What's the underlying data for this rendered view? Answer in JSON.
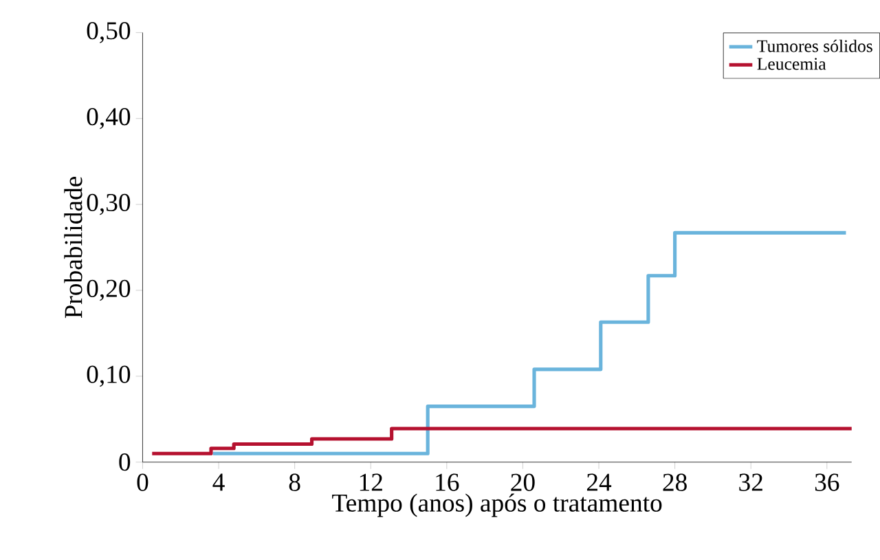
{
  "chart_data": {
    "type": "step",
    "xlabel": "Tempo (anos) após o  tratamento",
    "ylabel": "Probabilidade",
    "series": [
      {
        "name": "Tumores sólidos",
        "color": "#6ab4dc",
        "x": [
          3.7,
          15.0,
          20.6,
          24.1,
          26.6,
          28.0,
          37.0
        ],
        "values": [
          0.01,
          0.065,
          0.108,
          0.163,
          0.217,
          0.267,
          0.267
        ]
      },
      {
        "name": "Leucemia",
        "color": "#b5112f",
        "x": [
          0.5,
          3.6,
          4.8,
          8.9,
          13.1,
          37.3
        ],
        "values": [
          0.01,
          0.016,
          0.021,
          0.027,
          0.039,
          0.039
        ]
      }
    ],
    "xlim": [
      0,
      37.3
    ],
    "xticks": [
      0,
      4,
      8,
      12,
      16,
      20,
      24,
      28,
      32,
      36
    ],
    "ylim": [
      0,
      0.5
    ],
    "yticks": [
      0,
      {
        "value": 0.1,
        "label": "0,10"
      },
      {
        "value": 0.2,
        "label": "0,20"
      },
      {
        "value": 0.3,
        "label": "0,30"
      },
      {
        "value": 0.4,
        "label": "0,40"
      },
      {
        "value": 0.5,
        "label": "0,50"
      }
    ],
    "grid": false,
    "legend": "top right"
  }
}
